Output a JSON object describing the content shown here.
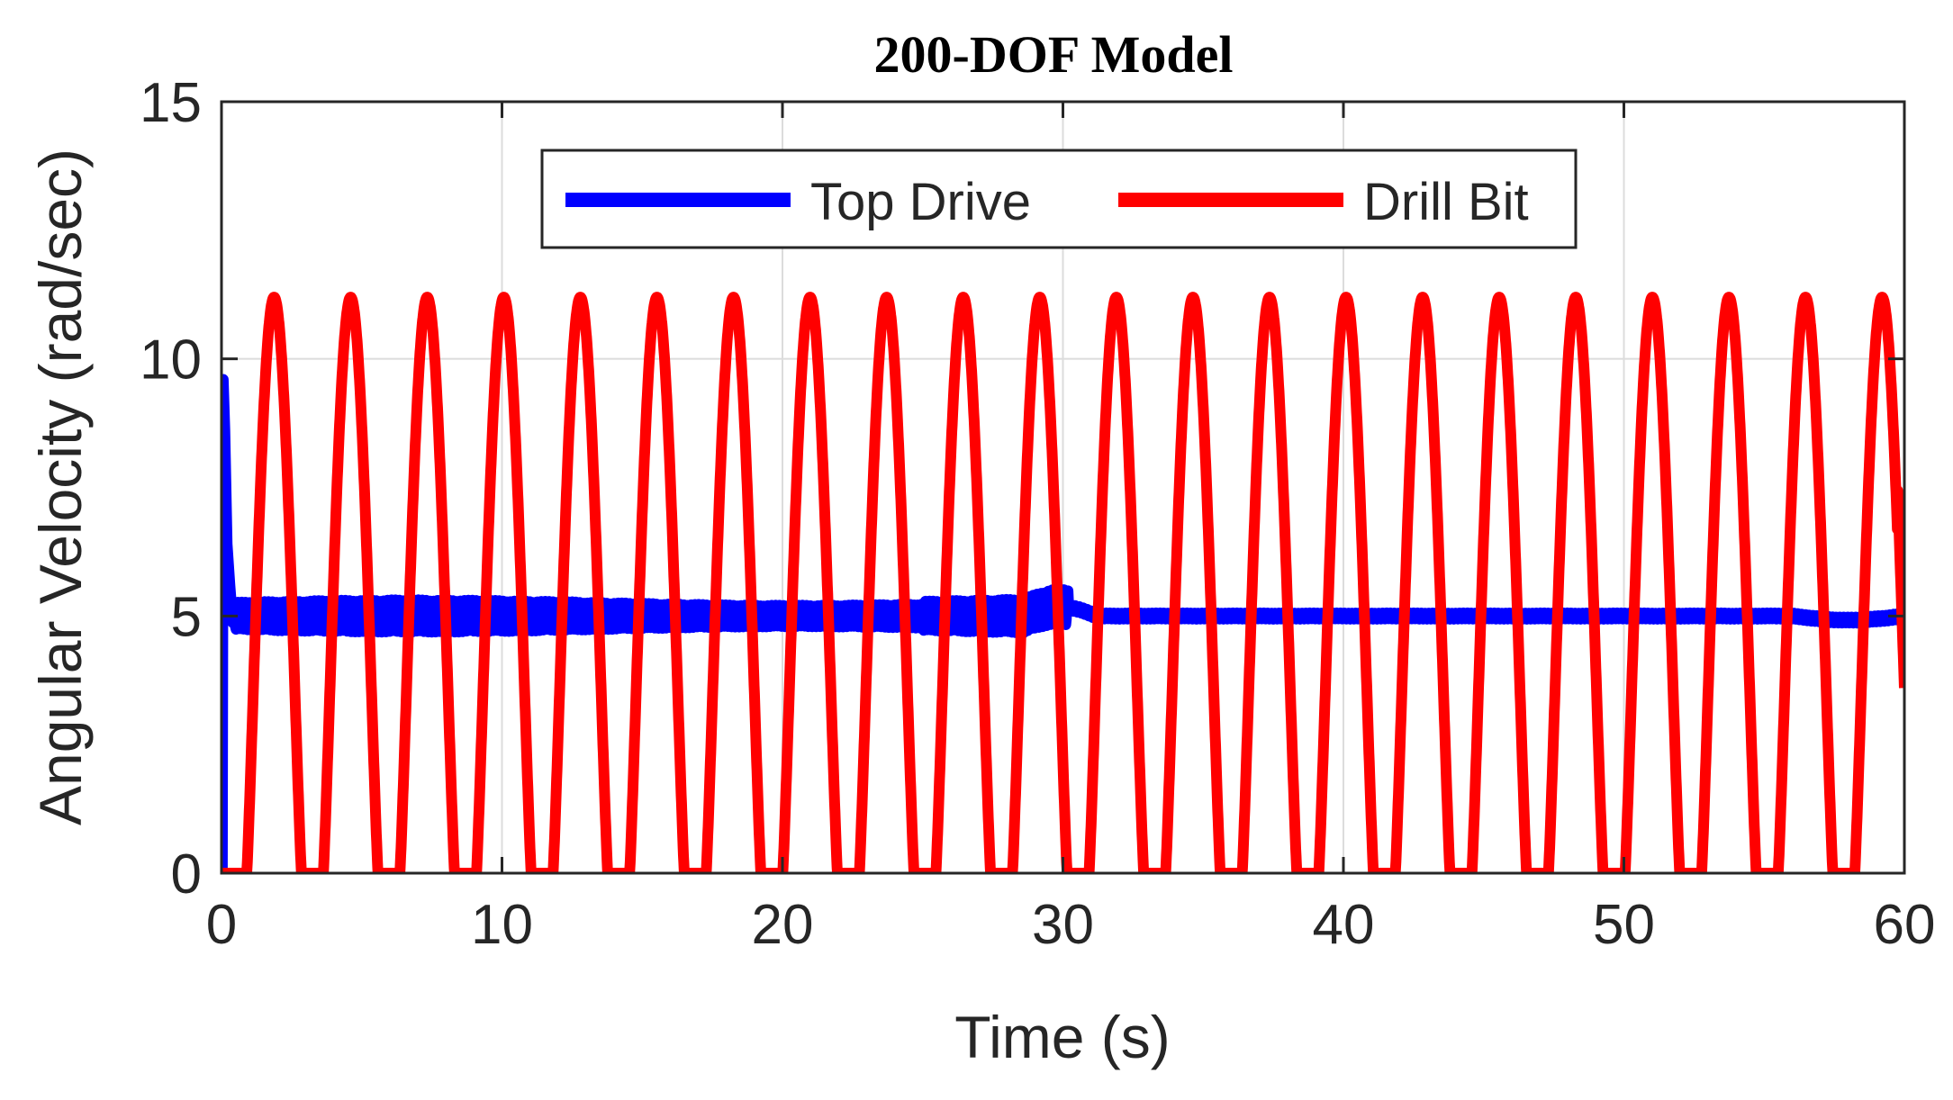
{
  "chart_data": {
    "type": "line",
    "title": "200-DOF Model",
    "xlabel": "Time (s)",
    "ylabel": "Angular Velocity (rad/sec)",
    "xlim": [
      0,
      60
    ],
    "ylim": [
      0,
      15
    ],
    "xticks": [
      0,
      10,
      20,
      30,
      40,
      50,
      60
    ],
    "yticks": [
      0,
      5,
      10,
      15
    ],
    "xtick_labels": [
      "0",
      "10",
      "20",
      "30",
      "40",
      "50",
      "60"
    ],
    "ytick_labels": [
      "0",
      "5",
      "10",
      "15"
    ],
    "grid": true,
    "legend_position": "top-center",
    "series": [
      {
        "name": "Top Drive",
        "color": "#0000ff",
        "description_values": {
          "initial_spike_peak": 9.6,
          "steady_mean": 5.0,
          "oscillation_amplitude_before_30s": 0.35,
          "oscillation_amplitude_after_30s": 0.1
        }
      },
      {
        "name": "Drill Bit",
        "color": "#ff0000",
        "description_values": {
          "peak": 11.2,
          "trough": 0.0,
          "period_s": 2.73,
          "first_rise_s": 0.9,
          "end_value": 3.6
        }
      }
    ]
  }
}
